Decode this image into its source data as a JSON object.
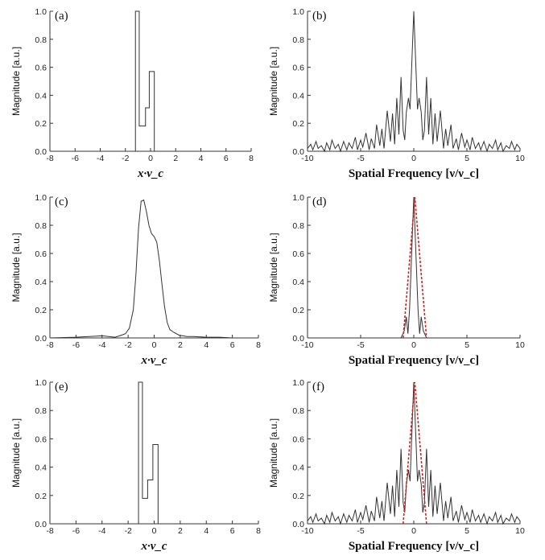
{
  "chart_data": [
    {
      "id": "a",
      "type": "line",
      "panel_label": "(a)",
      "ylabel": "Magnitude [a.u.]",
      "xlabel": "x·ν_c",
      "xlim": [
        -8,
        8
      ],
      "ylim": [
        0,
        1.0
      ],
      "xticks": [
        -8,
        -6,
        -4,
        -2,
        0,
        2,
        4,
        6,
        8
      ],
      "yticks": [
        0.0,
        0.2,
        0.4,
        0.6,
        0.8,
        1.0
      ],
      "series": [
        {
          "color": "#333333",
          "dashed": false,
          "x": [
            -8,
            -1.2,
            -1.2,
            -0.9,
            -0.9,
            -0.4,
            -0.4,
            -0.1,
            -0.1,
            0.3,
            0.3,
            8
          ],
          "y": [
            0,
            0,
            1.0,
            1.0,
            0.18,
            0.18,
            0.31,
            0.31,
            0.57,
            0.57,
            0,
            0
          ]
        }
      ]
    },
    {
      "id": "b",
      "type": "line",
      "panel_label": "(b)",
      "ylabel": "Magnitude [a.u.]",
      "xlabel": "Spatial Frequency [ν/ν_c]",
      "xlim": [
        -10,
        10
      ],
      "ylim": [
        0,
        1.0
      ],
      "xticks": [
        -10,
        -5,
        0,
        5,
        10
      ],
      "yticks": [
        0.0,
        0.2,
        0.4,
        0.6,
        0.8,
        1.0
      ],
      "series": [
        {
          "color": "#333333",
          "dashed": false,
          "x": [
            -10,
            -9.7,
            -9.5,
            -9.2,
            -9.0,
            -8.7,
            -8.4,
            -8.2,
            -7.9,
            -7.7,
            -7.4,
            -7.1,
            -6.9,
            -6.6,
            -6.3,
            -6.1,
            -5.8,
            -5.5,
            -5.3,
            -5.0,
            -4.8,
            -4.5,
            -4.2,
            -4.0,
            -3.7,
            -3.5,
            -3.2,
            -3.0,
            -2.8,
            -2.5,
            -2.2,
            -2.0,
            -1.8,
            -1.6,
            -1.4,
            -1.2,
            -1.0,
            -0.85,
            -0.7,
            -0.5,
            -0.35,
            -0.2,
            0,
            0.2,
            0.35,
            0.5,
            0.7,
            0.85,
            1.0,
            1.2,
            1.4,
            1.6,
            1.8,
            2.0,
            2.2,
            2.5,
            2.8,
            3.0,
            3.2,
            3.5,
            3.7,
            4.0,
            4.2,
            4.5,
            4.8,
            5.0,
            5.3,
            5.5,
            5.8,
            6.1,
            6.3,
            6.6,
            6.9,
            7.1,
            7.4,
            7.7,
            7.9,
            8.2,
            8.4,
            8.7,
            9.0,
            9.2,
            9.5,
            9.7,
            10
          ],
          "y": [
            0.02,
            0.05,
            0.01,
            0.07,
            0.02,
            0.04,
            0.0,
            0.06,
            0.01,
            0.08,
            0.02,
            0.05,
            0.0,
            0.07,
            0.01,
            0.06,
            0.02,
            0.1,
            0.01,
            0.08,
            0.03,
            0.13,
            0.01,
            0.09,
            0.02,
            0.19,
            0.04,
            0.16,
            0.02,
            0.29,
            0.07,
            0.27,
            0.05,
            0.38,
            0.12,
            0.53,
            0.15,
            0.08,
            0.28,
            0.38,
            0.3,
            0.6,
            1.0,
            0.6,
            0.3,
            0.38,
            0.28,
            0.08,
            0.15,
            0.53,
            0.12,
            0.38,
            0.05,
            0.27,
            0.07,
            0.29,
            0.02,
            0.16,
            0.04,
            0.19,
            0.02,
            0.09,
            0.01,
            0.13,
            0.03,
            0.08,
            0.01,
            0.1,
            0.02,
            0.06,
            0.01,
            0.07,
            0.0,
            0.05,
            0.02,
            0.08,
            0.01,
            0.06,
            0.0,
            0.04,
            0.02,
            0.07,
            0.01,
            0.05,
            0.02
          ]
        }
      ]
    },
    {
      "id": "c",
      "type": "line",
      "panel_label": "(c)",
      "ylabel": "Magnitude [a.u.]",
      "xlabel": "x·ν_c",
      "xlim": [
        -8,
        8
      ],
      "ylim": [
        0,
        1.0
      ],
      "xticks": [
        -8,
        -6,
        -4,
        -2,
        0,
        2,
        4,
        6,
        8
      ],
      "yticks": [
        0.0,
        0.2,
        0.4,
        0.6,
        0.8,
        1.0
      ],
      "series": [
        {
          "color": "#333333",
          "dashed": false,
          "x": [
            -8,
            -6,
            -5,
            -4,
            -3,
            -2.5,
            -2.2,
            -1.9,
            -1.6,
            -1.4,
            -1.2,
            -1.0,
            -0.8,
            -0.6,
            -0.4,
            -0.2,
            0.0,
            0.2,
            0.4,
            0.6,
            0.8,
            1.0,
            1.2,
            1.5,
            1.9,
            2.5,
            3,
            4,
            5,
            6,
            8
          ],
          "y": [
            0.0,
            0.005,
            0.01,
            0.015,
            0.005,
            0.02,
            0.03,
            0.07,
            0.2,
            0.45,
            0.78,
            0.97,
            0.98,
            0.9,
            0.8,
            0.74,
            0.72,
            0.68,
            0.55,
            0.38,
            0.22,
            0.11,
            0.06,
            0.04,
            0.02,
            0.01,
            0.01,
            0.005,
            0.005,
            0.0,
            0.0
          ]
        }
      ]
    },
    {
      "id": "d",
      "type": "line",
      "panel_label": "(d)",
      "ylabel": "Magnitude [a.u.]",
      "xlabel": "Spatial Frequency [ν/ν_c]",
      "xlim": [
        -10,
        10
      ],
      "ylim": [
        0,
        1.0
      ],
      "xticks": [
        -10,
        -5,
        0,
        5,
        10
      ],
      "yticks": [
        0.0,
        0.2,
        0.4,
        0.6,
        0.8,
        1.0
      ],
      "series": [
        {
          "color": "#333333",
          "dashed": false,
          "x": [
            -10,
            -1.2,
            -0.9,
            -0.7,
            -0.55,
            -0.4,
            -0.2,
            0,
            0.2,
            0.4,
            0.55,
            0.7,
            0.9,
            1.2,
            10
          ],
          "y": [
            0,
            0,
            0.05,
            0.15,
            0.03,
            0.2,
            0.6,
            1.0,
            0.6,
            0.2,
            0.03,
            0.15,
            0.05,
            0,
            0
          ]
        },
        {
          "color": "#cc2222",
          "dashed": true,
          "x": [
            -1.0,
            0.1,
            1.2
          ],
          "y": [
            0,
            1.0,
            0
          ]
        }
      ]
    },
    {
      "id": "e",
      "type": "line",
      "panel_label": "(e)",
      "ylabel": "Magnitude [a.u.]",
      "xlabel": "x·ν_c",
      "xlim": [
        -8,
        8
      ],
      "ylim": [
        0,
        1.0
      ],
      "xticks": [
        -8,
        -6,
        -4,
        -2,
        0,
        2,
        4,
        6,
        8
      ],
      "yticks": [
        0.0,
        0.2,
        0.4,
        0.6,
        0.8,
        1.0
      ],
      "series": [
        {
          "color": "#333333",
          "dashed": false,
          "x": [
            -8,
            -1.2,
            -1.2,
            -0.9,
            -0.9,
            -0.5,
            -0.5,
            -0.1,
            -0.1,
            0.3,
            0.3,
            8
          ],
          "y": [
            0,
            0,
            1.0,
            1.0,
            0.18,
            0.18,
            0.31,
            0.31,
            0.56,
            0.56,
            0,
            0
          ]
        }
      ]
    },
    {
      "id": "f",
      "type": "line",
      "panel_label": "(f)",
      "ylabel": "Magnitude [a.u.]",
      "xlabel": "Spatial Frequency [ν/ν_c]",
      "xlim": [
        -10,
        10
      ],
      "ylim": [
        0,
        1.0
      ],
      "xticks": [
        -10,
        -5,
        0,
        5,
        10
      ],
      "yticks": [
        0.0,
        0.2,
        0.4,
        0.6,
        0.8,
        1.0
      ],
      "series": [
        {
          "color": "#333333",
          "dashed": false,
          "x": [
            -10,
            -9.7,
            -9.5,
            -9.2,
            -9.0,
            -8.7,
            -8.4,
            -8.2,
            -7.9,
            -7.7,
            -7.4,
            -7.1,
            -6.9,
            -6.6,
            -6.3,
            -6.1,
            -5.8,
            -5.5,
            -5.3,
            -5.0,
            -4.8,
            -4.5,
            -4.2,
            -4.0,
            -3.7,
            -3.5,
            -3.2,
            -3.0,
            -2.8,
            -2.5,
            -2.2,
            -2.0,
            -1.8,
            -1.6,
            -1.4,
            -1.2,
            -1.0,
            -0.85,
            -0.7,
            -0.5,
            -0.35,
            -0.2,
            0,
            0.2,
            0.35,
            0.5,
            0.7,
            0.85,
            1.0,
            1.2,
            1.4,
            1.6,
            1.8,
            2.0,
            2.2,
            2.5,
            2.8,
            3.0,
            3.2,
            3.5,
            3.7,
            4.0,
            4.2,
            4.5,
            4.8,
            5.0,
            5.3,
            5.5,
            5.8,
            6.1,
            6.3,
            6.6,
            6.9,
            7.1,
            7.4,
            7.7,
            7.9,
            8.2,
            8.4,
            8.7,
            9.0,
            9.2,
            9.5,
            9.7,
            10
          ],
          "y": [
            0.02,
            0.05,
            0.01,
            0.07,
            0.02,
            0.04,
            0.0,
            0.06,
            0.01,
            0.08,
            0.02,
            0.05,
            0.0,
            0.07,
            0.01,
            0.06,
            0.02,
            0.1,
            0.01,
            0.08,
            0.03,
            0.13,
            0.01,
            0.09,
            0.02,
            0.19,
            0.04,
            0.16,
            0.02,
            0.29,
            0.07,
            0.27,
            0.05,
            0.38,
            0.12,
            0.53,
            0.15,
            0.08,
            0.28,
            0.38,
            0.3,
            0.6,
            1.0,
            0.6,
            0.3,
            0.38,
            0.28,
            0.08,
            0.15,
            0.53,
            0.12,
            0.38,
            0.05,
            0.27,
            0.07,
            0.29,
            0.02,
            0.16,
            0.04,
            0.19,
            0.02,
            0.09,
            0.01,
            0.13,
            0.03,
            0.08,
            0.01,
            0.1,
            0.02,
            0.06,
            0.01,
            0.07,
            0.0,
            0.05,
            0.02,
            0.08,
            0.01,
            0.06,
            0.0,
            0.04,
            0.02,
            0.07,
            0.01,
            0.05,
            0.02
          ]
        },
        {
          "color": "#cc2222",
          "dashed": true,
          "x": [
            -1.0,
            0.1,
            1.2
          ],
          "y": [
            0,
            1.0,
            0
          ]
        }
      ]
    }
  ]
}
